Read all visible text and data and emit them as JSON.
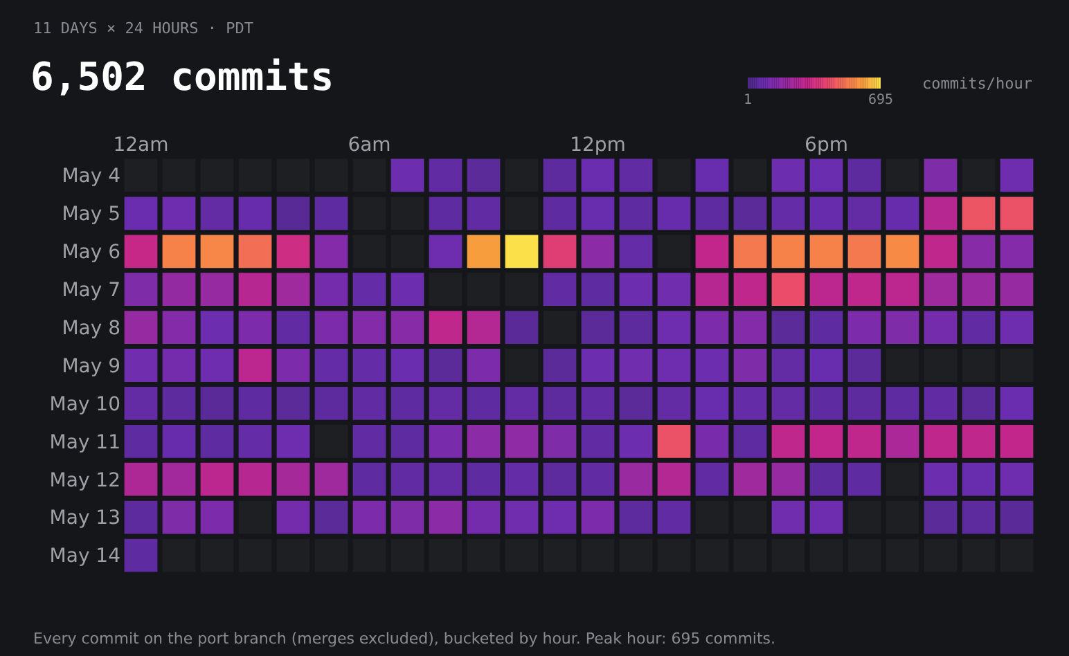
{
  "chart_data": {
    "type": "heatmap",
    "subtitle": "11 DAYS × 24 HOURS · PDT",
    "title": "6,502 commits",
    "clabel": "commits/hour",
    "clim": [
      1,
      695
    ],
    "cticks": [
      1,
      695
    ],
    "categories": [
      "12am",
      null,
      null,
      null,
      null,
      null,
      "6am",
      null,
      null,
      null,
      null,
      null,
      "12pm",
      null,
      null,
      null,
      null,
      null,
      "6pm",
      null,
      null,
      null,
      null,
      null
    ],
    "y_categories": [
      "May 4",
      "May 5",
      "May 6",
      "May 7",
      "May 8",
      "May 9",
      "May 10",
      "May 11",
      "May 12",
      "May 13",
      "May 14"
    ],
    "cells": [
      [
        null,
        null,
        null,
        null,
        null,
        null,
        null,
        90,
        60,
        45,
        null,
        50,
        85,
        60,
        null,
        80,
        null,
        90,
        85,
        50,
        null,
        140,
        null,
        95
      ],
      [
        85,
        95,
        65,
        75,
        35,
        55,
        null,
        null,
        55,
        60,
        null,
        55,
        80,
        55,
        75,
        55,
        45,
        70,
        75,
        65,
        75,
        280,
        450,
        440
      ],
      [
        320,
        540,
        550,
        500,
        340,
        150,
        null,
        null,
        95,
        600,
        695,
        390,
        170,
        70,
        null,
        310,
        520,
        540,
        540,
        520,
        560,
        300,
        160,
        150
      ],
      [
        140,
        190,
        200,
        280,
        220,
        110,
        70,
        90,
        null,
        null,
        null,
        60,
        55,
        90,
        100,
        280,
        300,
        430,
        290,
        300,
        290,
        220,
        210,
        200
      ],
      [
        200,
        150,
        90,
        130,
        60,
        130,
        150,
        160,
        300,
        270,
        40,
        null,
        45,
        50,
        95,
        130,
        150,
        45,
        55,
        130,
        140,
        110,
        60,
        95
      ],
      [
        100,
        110,
        95,
        290,
        130,
        70,
        70,
        85,
        45,
        130,
        null,
        45,
        90,
        100,
        95,
        90,
        140,
        65,
        80,
        45,
        null,
        null,
        null,
        null
      ],
      [
        65,
        50,
        40,
        55,
        45,
        50,
        60,
        55,
        65,
        55,
        65,
        50,
        60,
        45,
        65,
        80,
        70,
        65,
        55,
        50,
        55,
        60,
        45,
        85
      ],
      [
        55,
        75,
        55,
        70,
        95,
        null,
        60,
        55,
        120,
        170,
        180,
        140,
        60,
        90,
        440,
        120,
        55,
        300,
        310,
        300,
        250,
        300,
        300,
        310
      ],
      [
        260,
        230,
        290,
        280,
        240,
        220,
        55,
        60,
        65,
        55,
        70,
        50,
        60,
        210,
        270,
        60,
        220,
        200,
        50,
        55,
        null,
        90,
        80,
        95
      ],
      [
        50,
        140,
        130,
        null,
        110,
        45,
        130,
        140,
        170,
        110,
        100,
        95,
        130,
        50,
        60,
        null,
        null,
        100,
        95,
        null,
        null,
        45,
        50,
        40
      ],
      [
        55,
        null,
        null,
        null,
        null,
        null,
        null,
        null,
        null,
        null,
        null,
        null,
        null,
        null,
        null,
        null,
        null,
        null,
        null,
        null,
        null,
        null,
        null,
        null
      ]
    ],
    "annotations": [
      "Every commit on the port branch (merges excluded), bucketed by hour. Peak hour: 695 commits."
    ]
  }
}
